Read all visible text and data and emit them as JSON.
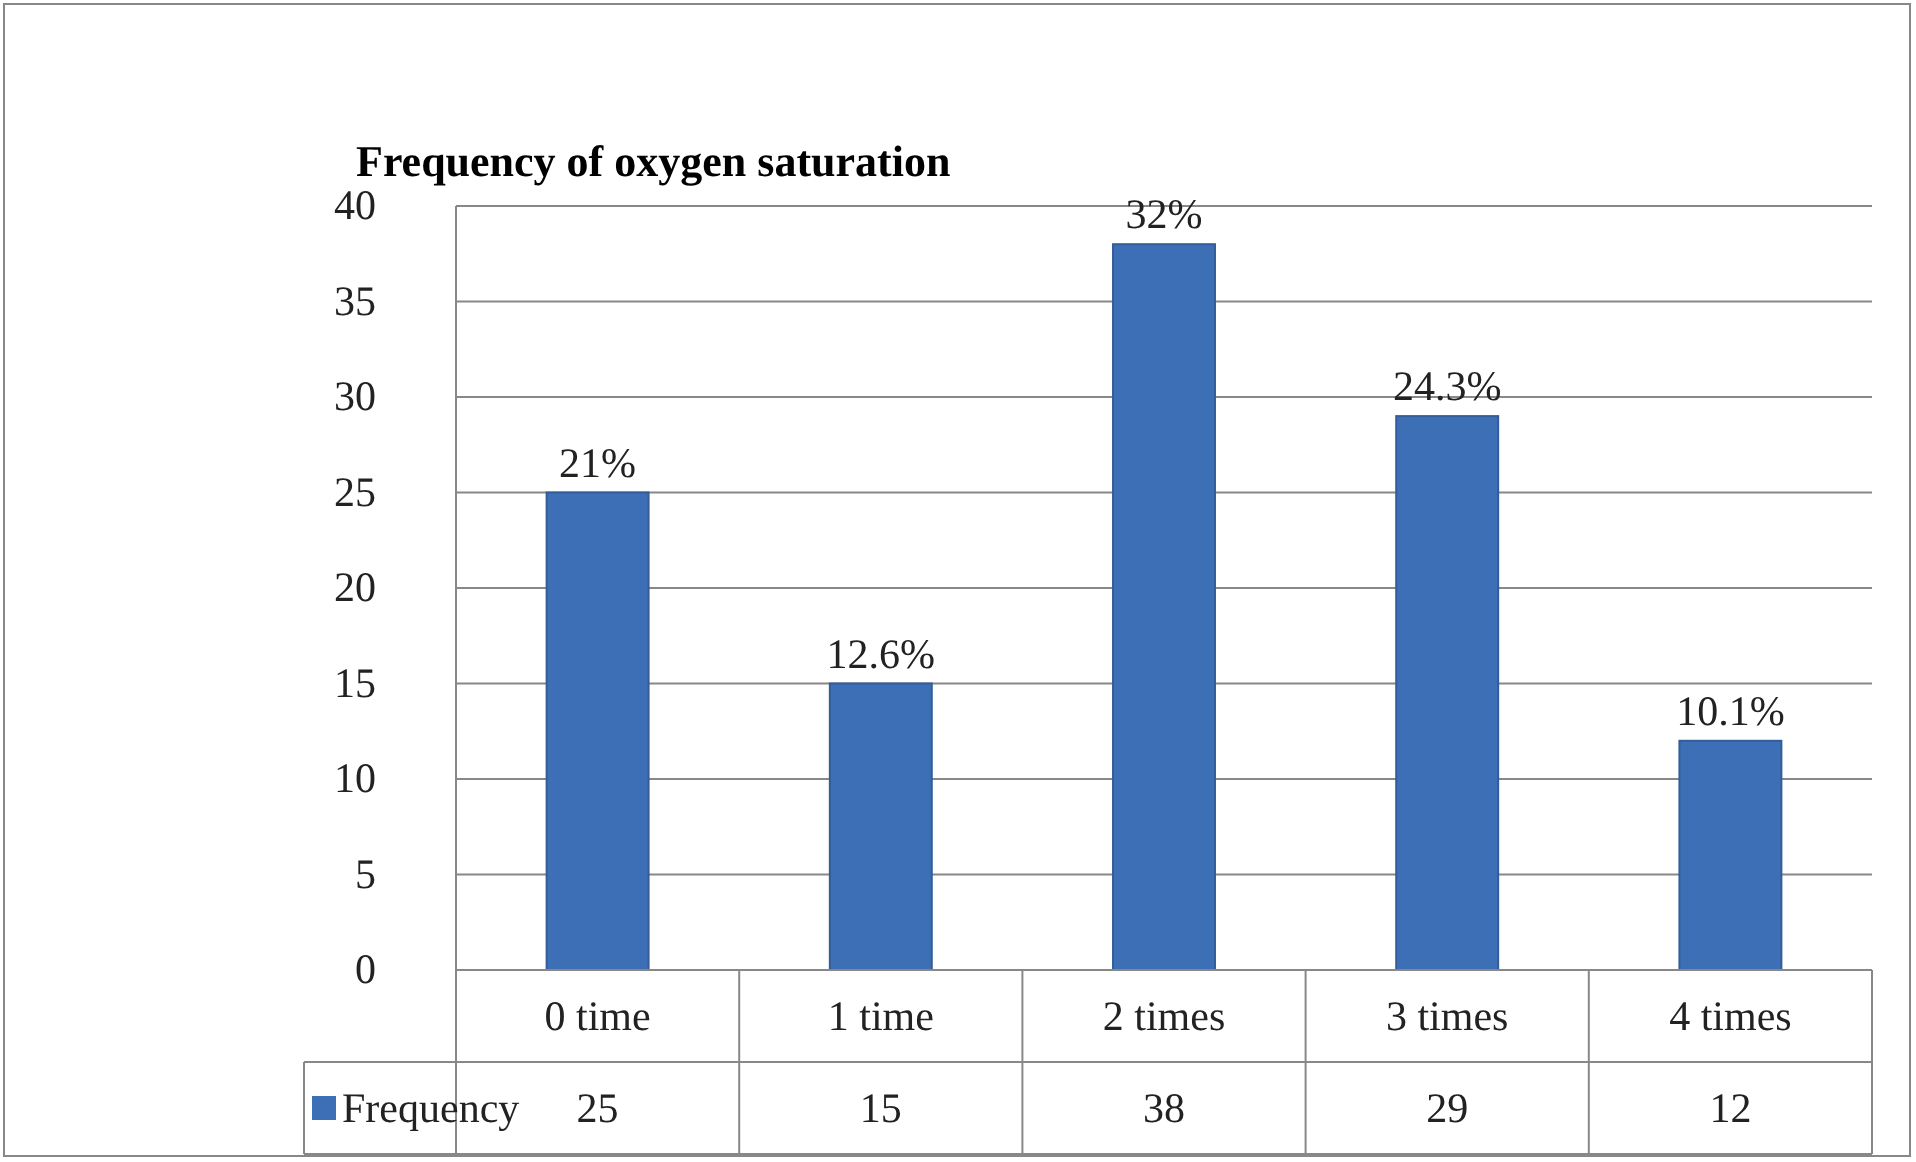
{
  "chart_data": {
    "type": "bar",
    "title": "Frequency of oxygen saturation",
    "categories": [
      "0 time",
      "1 time",
      "2 times",
      "3 times",
      "4 times"
    ],
    "series": [
      {
        "name": "Frequency",
        "color": "#3d6fb6",
        "values": [
          25,
          15,
          38,
          29,
          12
        ]
      }
    ],
    "annotations": [
      {
        "text": "21%",
        "x": "0 time",
        "y": 25
      },
      {
        "text": "12.6%",
        "x": "1 time",
        "y": 15
      },
      {
        "text": "32%",
        "x": "2 times",
        "y": 38
      },
      {
        "text": "24.3%",
        "x": "3 times",
        "y": 29
      },
      {
        "text": "10.1%",
        "x": "4 times",
        "y": 12
      }
    ],
    "ylim": [
      0,
      40
    ],
    "yticks": [
      0,
      5,
      10,
      15,
      20,
      25,
      30,
      35,
      40
    ],
    "grid": "y",
    "data_labels": true,
    "legend": "bottom left"
  }
}
